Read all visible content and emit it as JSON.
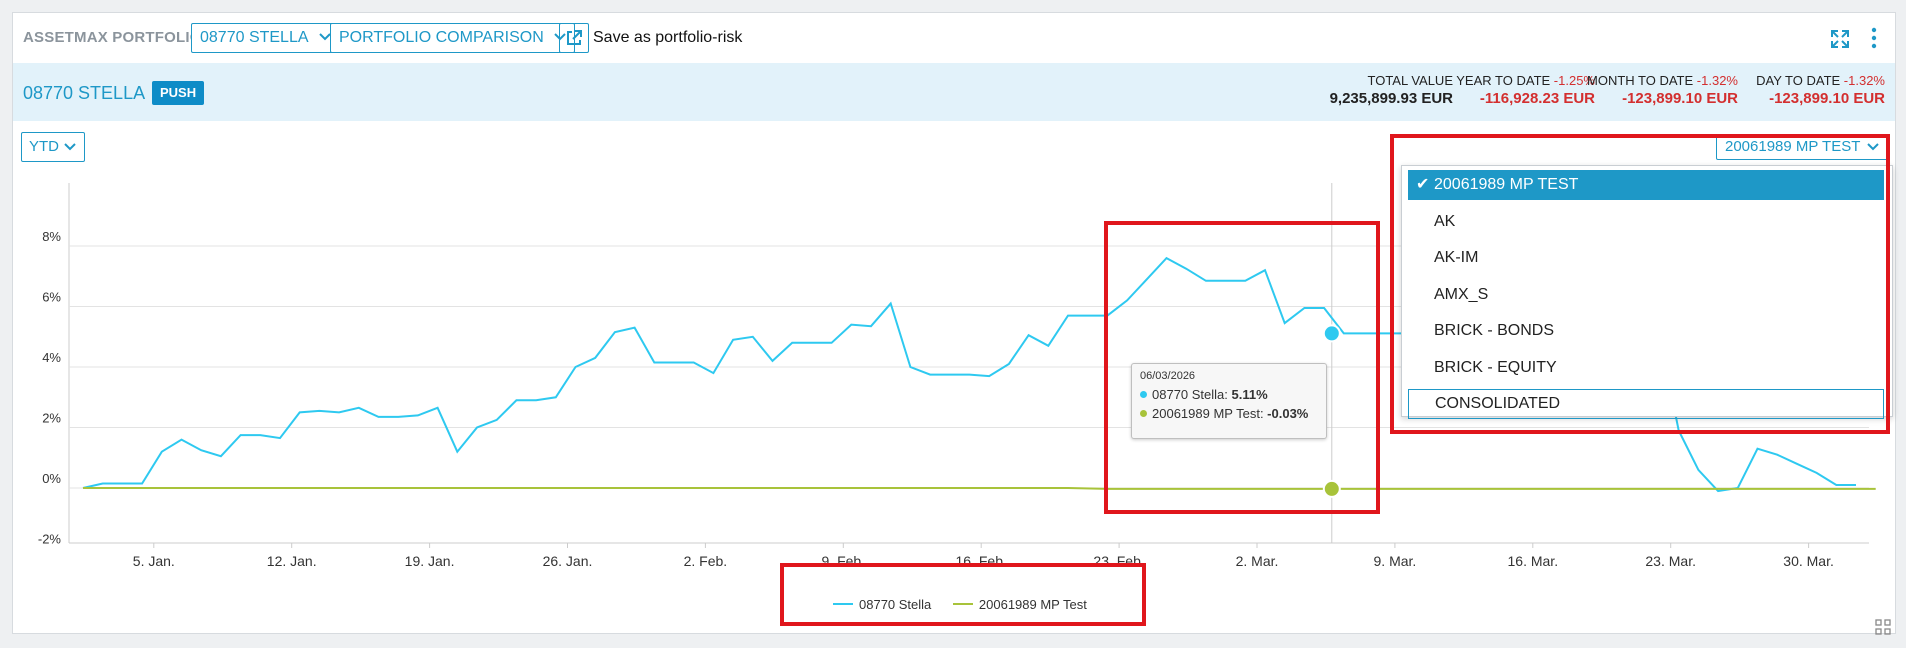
{
  "toolbar": {
    "brand": "ASSETMAX PORTFOLIO",
    "portfolio_select": "08770 STELLA",
    "view_select": "PORTFOLIO COMPARISON",
    "save_label": "Save as portfolio-risk",
    "icons": [
      "external-link-icon",
      "expand-icon",
      "kebab-icon"
    ]
  },
  "header": {
    "title": "08770 STELLA",
    "badge": "PUSH",
    "kpis": [
      {
        "label": "TOTAL VALUE",
        "pct": "",
        "value": "9,235,899.93 EUR",
        "negative": false
      },
      {
        "label": "YEAR TO DATE ",
        "pct": "-1.25%",
        "value": "-116,928.23 EUR",
        "negative": true
      },
      {
        "label": "MONTH TO DATE ",
        "pct": "-1.32%",
        "value": "-123,899.10 EUR",
        "negative": true
      },
      {
        "label": "DAY TO DATE ",
        "pct": "-1.32%",
        "value": "-123,899.10 EUR",
        "negative": true
      }
    ]
  },
  "controls": {
    "period": "YTD",
    "comparison": "20061989 MP TEST"
  },
  "comparison_menu": {
    "items": [
      "20061989 MP TEST",
      "AK",
      "AK-IM",
      "AMX_S",
      "BRICK - BONDS",
      "BRICK - EQUITY",
      "CONSOLIDATED"
    ],
    "selected": "20061989 MP TEST",
    "focused": "CONSOLIDATED"
  },
  "tooltip": {
    "date": "06/03/2026",
    "rows": [
      {
        "name": "08770 Stella",
        "value": "5.11%"
      },
      {
        "name": "20061989 MP Test",
        "value": "-0.03%"
      }
    ]
  },
  "colors": {
    "accent": "#1e98c7",
    "series1": "#2ec9f0",
    "series2": "#a8c33a",
    "negative": "#d32f2f",
    "highlight": "#e0161c"
  },
  "chart_data": {
    "type": "line",
    "x_ticks": [
      "5. Jan.",
      "12. Jan.",
      "19. Jan.",
      "26. Jan.",
      "2. Feb.",
      "9. Feb.",
      "16. Feb.",
      "23. Feb.",
      "2. Mar.",
      "9. Mar.",
      "16. Mar.",
      "23. Mar.",
      "30. Mar."
    ],
    "y_ticks": [
      "-2%",
      "0%",
      "2%",
      "4%",
      "6%",
      "8%"
    ],
    "ylim": [
      -2,
      10
    ],
    "x_range_days": [
      0,
      91
    ],
    "series": [
      {
        "name": "08770 Stella",
        "x": [
          0,
          1,
          3,
          4,
          5,
          6,
          7,
          8,
          9,
          10,
          11,
          12,
          13,
          14,
          15,
          16,
          17,
          18,
          19,
          20,
          21,
          22,
          23,
          24,
          25,
          26,
          27,
          28,
          29,
          30,
          31,
          32,
          33,
          34,
          35,
          36,
          37,
          38,
          39,
          40,
          41,
          42,
          43,
          44,
          45,
          46,
          47,
          48,
          49,
          50,
          51,
          52,
          53,
          54,
          55,
          56,
          57,
          58,
          59,
          60,
          61,
          62,
          63,
          64,
          65,
          66,
          67,
          68,
          69,
          70,
          71,
          72,
          73,
          74,
          75,
          76,
          77,
          78,
          79,
          80,
          81,
          82,
          83,
          84,
          85,
          86,
          87,
          88,
          89,
          90
        ],
        "values": [
          0,
          0.15,
          0.15,
          1.2,
          1.6,
          1.25,
          1.05,
          1.75,
          1.75,
          1.65,
          2.5,
          2.55,
          2.5,
          2.65,
          2.35,
          2.35,
          2.4,
          2.65,
          1.2,
          2.0,
          2.25,
          2.9,
          2.9,
          3.0,
          4.0,
          4.3,
          5.15,
          5.3,
          4.15,
          4.15,
          4.15,
          3.8,
          4.9,
          5.0,
          4.2,
          4.8,
          4.8,
          4.8,
          5.4,
          5.35,
          6.1,
          4.0,
          3.75,
          3.75,
          3.75,
          3.7,
          4.1,
          5.05,
          4.7,
          5.7,
          5.7,
          5.7,
          6.2,
          6.9,
          7.6,
          7.25,
          6.85,
          6.85,
          6.85,
          7.2,
          5.45,
          5.95,
          5.95,
          5.11,
          5.11,
          5.11,
          5.11,
          5.11,
          5.11,
          5.11,
          5.11,
          5.11,
          5.11,
          5.11,
          5.11,
          5.11,
          5.11,
          5.11,
          5.11,
          5.11,
          1.9,
          0.6,
          -0.1,
          0,
          1.3,
          1.1,
          0.8,
          0.5,
          0.1,
          0.1
        ]
      },
      {
        "name": "20061989 MP Test",
        "x": [
          0,
          50,
          52,
          91
        ],
        "values": [
          0,
          0,
          -0.03,
          -0.03
        ]
      }
    ],
    "hover": {
      "day": 64,
      "values": [
        5.11,
        -0.03
      ]
    }
  }
}
